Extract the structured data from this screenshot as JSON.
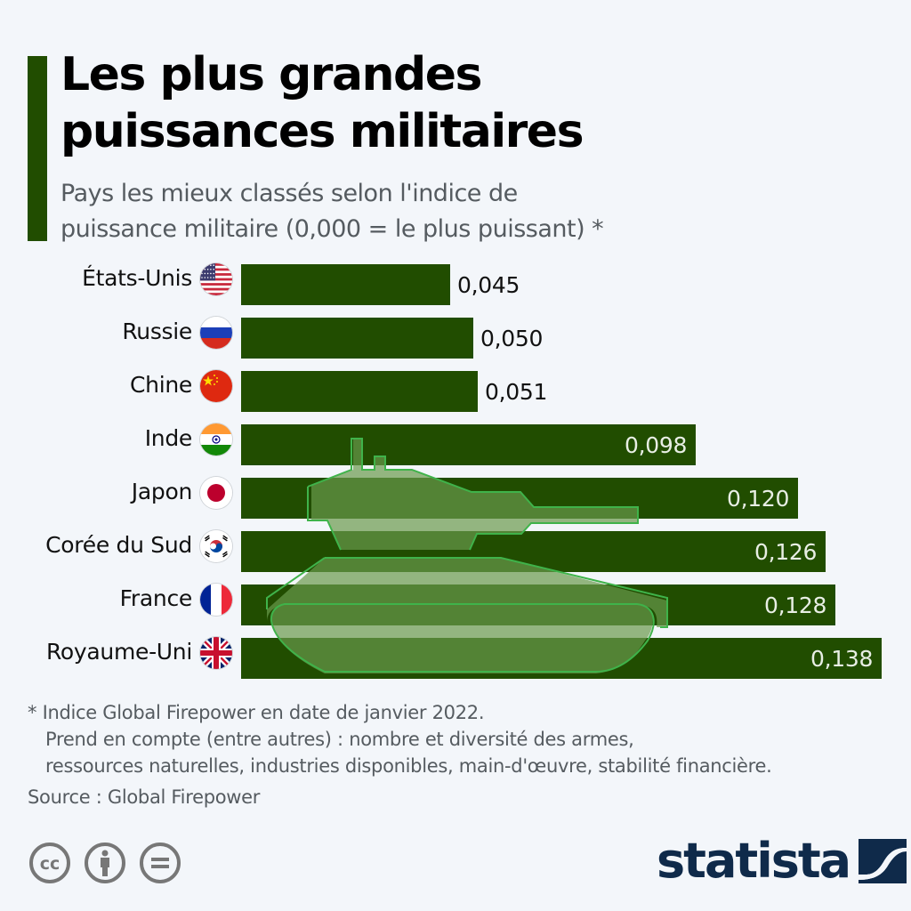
{
  "header": {
    "title_line1": "Les plus grandes",
    "title_line2": "puissances militaires",
    "subtitle_line1": "Pays les mieux classés selon l'indice de",
    "subtitle_line2": "puissance militaire (0,000 = le plus puissant) *"
  },
  "colors": {
    "bar": "#214d00",
    "accent": "#214d00",
    "background": "#f3f6fa",
    "tank_fill": "#6a9a4c",
    "tank_stroke": "#3fb34a",
    "logo": "#0f2a4a"
  },
  "chart_data": {
    "type": "bar",
    "orientation": "horizontal",
    "title": "Les plus grandes puissances militaires",
    "subtitle": "Pays les mieux classés selon l'indice de puissance militaire (0,000 = le plus puissant) *",
    "xlabel": "",
    "ylabel": "",
    "categories": [
      "États-Unis",
      "Russie",
      "Chine",
      "Inde",
      "Japon",
      "Corée du Sud",
      "France",
      "Royaume-Uni"
    ],
    "values": [
      0.045,
      0.05,
      0.051,
      0.098,
      0.12,
      0.126,
      0.128,
      0.138
    ],
    "value_labels": [
      "0,045",
      "0,050",
      "0,051",
      "0,098",
      "0,120",
      "0,126",
      "0,128",
      "0,138"
    ],
    "flags": [
      "us-flag-icon",
      "russia-flag-icon",
      "china-flag-icon",
      "india-flag-icon",
      "japan-flag-icon",
      "south-korea-flag-icon",
      "france-flag-icon",
      "uk-flag-icon"
    ],
    "xlim": [
      0,
      0.138
    ],
    "grid": false,
    "legend": "none"
  },
  "footer": {
    "note_line1": "* Indice Global Firepower en date de janvier 2022.",
    "note_line2": "Prend en compte (entre autres) : nombre et diversité des armes,",
    "note_line3": "ressources naturelles, industries disponibles, main-d'œuvre, stabilité financière.",
    "source": "Source : Global Firepower",
    "license_icons": [
      "cc-icon",
      "attribution-icon",
      "no-derivatives-icon"
    ],
    "logo_text": "statista"
  }
}
